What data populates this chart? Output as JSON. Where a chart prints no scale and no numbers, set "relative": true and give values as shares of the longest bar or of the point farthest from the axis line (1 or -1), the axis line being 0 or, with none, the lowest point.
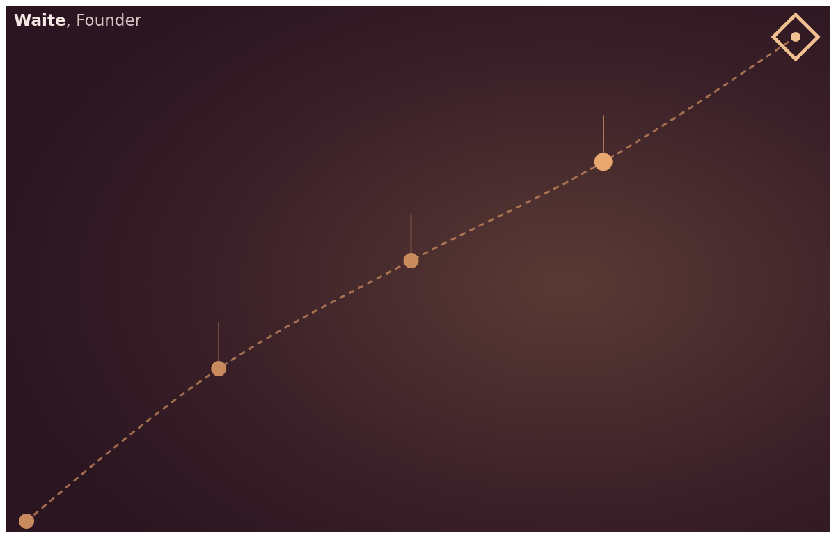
{
  "chart_data": {
    "type": "line",
    "relative": true,
    "categories": [
      null,
      null,
      null,
      null,
      null
    ],
    "series": [
      {
        "color": "#c98a5e",
        "values": [
          0,
          0.315,
          0.538,
          0.742,
          1
        ]
      }
    ],
    "marker": "circle",
    "line_style": "dashed",
    "annotations": [
      "Waite, Founder"
    ]
  }
}
